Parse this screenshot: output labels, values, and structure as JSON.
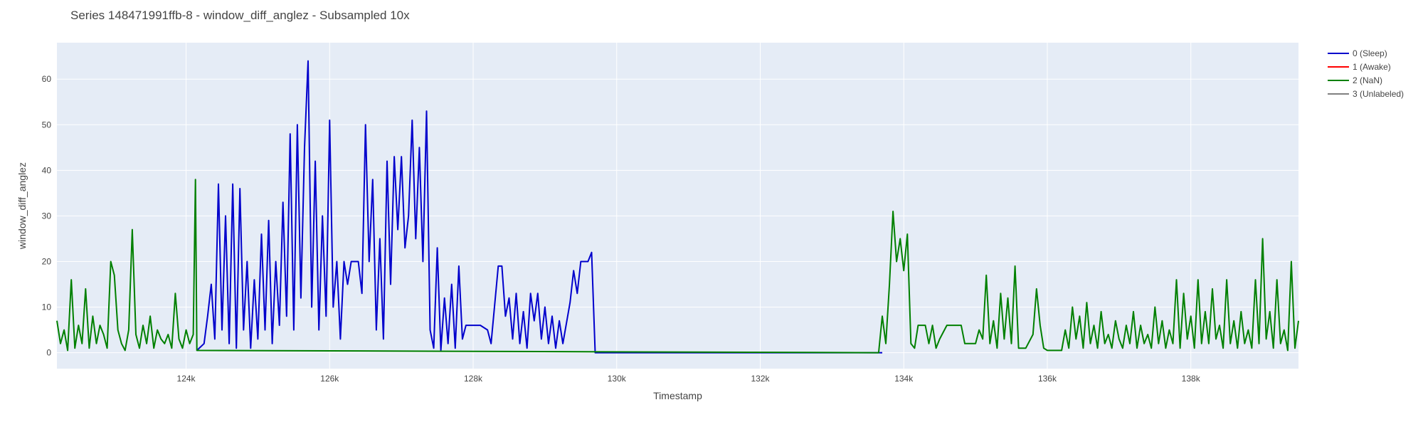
{
  "chart_data": {
    "type": "line",
    "title": "Series 148471991ffb-8 - window_diff_anglez - Subsampled 10x",
    "xlabel": "Timestamp",
    "ylabel": "window_diff_anglez",
    "xlim": [
      122200,
      139500
    ],
    "ylim": [
      -3.5,
      68
    ],
    "x_tick_values": [
      124000,
      126000,
      128000,
      130000,
      132000,
      134000,
      136000,
      138000
    ],
    "x_tick_labels": [
      "124k",
      "126k",
      "128k",
      "130k",
      "132k",
      "134k",
      "136k",
      "138k"
    ],
    "y_tick_values": [
      0,
      10,
      20,
      30,
      40,
      50,
      60
    ],
    "y_tick_labels": [
      "0",
      "10",
      "20",
      "30",
      "40",
      "50",
      "60"
    ],
    "grid": true,
    "legend_position": "top-right",
    "series": [
      {
        "name": "0 (Sleep)",
        "color": "#0000cc",
        "points": [
          [
            124150,
            0.5
          ],
          [
            124250,
            2
          ],
          [
            124300,
            8
          ],
          [
            124350,
            15
          ],
          [
            124400,
            3
          ],
          [
            124450,
            37
          ],
          [
            124500,
            5
          ],
          [
            124550,
            30
          ],
          [
            124600,
            2
          ],
          [
            124650,
            37
          ],
          [
            124700,
            1
          ],
          [
            124750,
            36
          ],
          [
            124800,
            5
          ],
          [
            124850,
            20
          ],
          [
            124900,
            1
          ],
          [
            124950,
            16
          ],
          [
            125000,
            3
          ],
          [
            125050,
            26
          ],
          [
            125100,
            5
          ],
          [
            125150,
            29
          ],
          [
            125200,
            2
          ],
          [
            125250,
            20
          ],
          [
            125300,
            6
          ],
          [
            125350,
            33
          ],
          [
            125400,
            8
          ],
          [
            125450,
            48
          ],
          [
            125500,
            5
          ],
          [
            125550,
            50
          ],
          [
            125600,
            12
          ],
          [
            125650,
            45
          ],
          [
            125700,
            64
          ],
          [
            125750,
            10
          ],
          [
            125800,
            42
          ],
          [
            125850,
            5
          ],
          [
            125900,
            30
          ],
          [
            125950,
            8
          ],
          [
            126000,
            51
          ],
          [
            126050,
            10
          ],
          [
            126100,
            20
          ],
          [
            126150,
            3
          ],
          [
            126200,
            20
          ],
          [
            126250,
            15
          ],
          [
            126300,
            20
          ],
          [
            126350,
            20
          ],
          [
            126400,
            20
          ],
          [
            126450,
            13
          ],
          [
            126500,
            50
          ],
          [
            126550,
            20
          ],
          [
            126600,
            38
          ],
          [
            126650,
            5
          ],
          [
            126700,
            25
          ],
          [
            126750,
            3
          ],
          [
            126800,
            42
          ],
          [
            126850,
            15
          ],
          [
            126900,
            43
          ],
          [
            126950,
            27
          ],
          [
            127000,
            43
          ],
          [
            127050,
            23
          ],
          [
            127100,
            30
          ],
          [
            127150,
            51
          ],
          [
            127200,
            25
          ],
          [
            127250,
            45
          ],
          [
            127300,
            20
          ],
          [
            127350,
            53
          ],
          [
            127400,
            5
          ],
          [
            127450,
            1
          ],
          [
            127500,
            23
          ],
          [
            127550,
            0.5
          ],
          [
            127600,
            12
          ],
          [
            127650,
            2
          ],
          [
            127700,
            15
          ],
          [
            127750,
            1
          ],
          [
            127800,
            19
          ],
          [
            127850,
            3
          ],
          [
            127900,
            6
          ],
          [
            128000,
            6
          ],
          [
            128100,
            6
          ],
          [
            128200,
            5
          ],
          [
            128250,
            2
          ],
          [
            128350,
            19
          ],
          [
            128400,
            19
          ],
          [
            128450,
            8
          ],
          [
            128500,
            12
          ],
          [
            128550,
            3
          ],
          [
            128600,
            13
          ],
          [
            128650,
            2
          ],
          [
            128700,
            9
          ],
          [
            128750,
            1
          ],
          [
            128800,
            13
          ],
          [
            128850,
            7
          ],
          [
            128900,
            13
          ],
          [
            128950,
            3
          ],
          [
            129000,
            10
          ],
          [
            129050,
            2
          ],
          [
            129100,
            8
          ],
          [
            129150,
            1
          ],
          [
            129200,
            7
          ],
          [
            129250,
            2
          ],
          [
            129350,
            11
          ],
          [
            129400,
            18
          ],
          [
            129450,
            13
          ],
          [
            129500,
            20
          ],
          [
            129600,
            20
          ],
          [
            129650,
            22
          ],
          [
            129700,
            0
          ],
          [
            130500,
            0
          ],
          [
            131500,
            0
          ],
          [
            132500,
            0
          ],
          [
            133500,
            0
          ],
          [
            133700,
            0
          ]
        ]
      },
      {
        "name": "1 (Awake)",
        "color": "#ff0000",
        "points": []
      },
      {
        "name": "2 (NaN)",
        "color": "#008000",
        "points": [
          [
            122200,
            7
          ],
          [
            122250,
            2
          ],
          [
            122300,
            5
          ],
          [
            122350,
            0.5
          ],
          [
            122400,
            16
          ],
          [
            122450,
            1
          ],
          [
            122500,
            6
          ],
          [
            122550,
            2
          ],
          [
            122600,
            14
          ],
          [
            122650,
            1
          ],
          [
            122700,
            8
          ],
          [
            122750,
            2
          ],
          [
            122800,
            6
          ],
          [
            122850,
            4
          ],
          [
            122900,
            1
          ],
          [
            122950,
            20
          ],
          [
            123000,
            17
          ],
          [
            123050,
            5
          ],
          [
            123100,
            2
          ],
          [
            123150,
            0.5
          ],
          [
            123200,
            5
          ],
          [
            123250,
            27
          ],
          [
            123300,
            4
          ],
          [
            123350,
            1
          ],
          [
            123400,
            6
          ],
          [
            123450,
            2
          ],
          [
            123500,
            8
          ],
          [
            123550,
            1
          ],
          [
            123600,
            5
          ],
          [
            123650,
            3
          ],
          [
            123700,
            2
          ],
          [
            123750,
            4
          ],
          [
            123800,
            1
          ],
          [
            123850,
            13
          ],
          [
            123900,
            3
          ],
          [
            123950,
            1
          ],
          [
            124000,
            5
          ],
          [
            124050,
            2
          ],
          [
            124100,
            4
          ],
          [
            124130,
            38
          ],
          [
            124150,
            0.5
          ],
          [
            133650,
            0
          ],
          [
            133700,
            8
          ],
          [
            133750,
            2
          ],
          [
            133800,
            15
          ],
          [
            133850,
            31
          ],
          [
            133900,
            20
          ],
          [
            133950,
            25
          ],
          [
            134000,
            18
          ],
          [
            134050,
            26
          ],
          [
            134100,
            2
          ],
          [
            134150,
            1
          ],
          [
            134200,
            6
          ],
          [
            134250,
            6
          ],
          [
            134300,
            6
          ],
          [
            134350,
            2
          ],
          [
            134400,
            6
          ],
          [
            134450,
            1
          ],
          [
            134500,
            3
          ],
          [
            134600,
            6
          ],
          [
            134800,
            6
          ],
          [
            134850,
            2
          ],
          [
            135000,
            2
          ],
          [
            135050,
            5
          ],
          [
            135100,
            3
          ],
          [
            135150,
            17
          ],
          [
            135200,
            2
          ],
          [
            135250,
            7
          ],
          [
            135300,
            1
          ],
          [
            135350,
            13
          ],
          [
            135400,
            3
          ],
          [
            135450,
            12
          ],
          [
            135500,
            2
          ],
          [
            135550,
            19
          ],
          [
            135600,
            1
          ],
          [
            135700,
            1
          ],
          [
            135800,
            4
          ],
          [
            135850,
            14
          ],
          [
            135900,
            6
          ],
          [
            135950,
            1
          ],
          [
            136000,
            0.5
          ],
          [
            136200,
            0.5
          ],
          [
            136250,
            5
          ],
          [
            136300,
            1
          ],
          [
            136350,
            10
          ],
          [
            136400,
            3
          ],
          [
            136450,
            8
          ],
          [
            136500,
            1
          ],
          [
            136550,
            11
          ],
          [
            136600,
            2
          ],
          [
            136650,
            6
          ],
          [
            136700,
            1
          ],
          [
            136750,
            9
          ],
          [
            136800,
            2
          ],
          [
            136850,
            4
          ],
          [
            136900,
            1
          ],
          [
            136950,
            7
          ],
          [
            137000,
            3
          ],
          [
            137050,
            1
          ],
          [
            137100,
            6
          ],
          [
            137150,
            2
          ],
          [
            137200,
            9
          ],
          [
            137250,
            1
          ],
          [
            137300,
            6
          ],
          [
            137350,
            2
          ],
          [
            137400,
            4
          ],
          [
            137450,
            1
          ],
          [
            137500,
            10
          ],
          [
            137550,
            2
          ],
          [
            137600,
            7
          ],
          [
            137650,
            1
          ],
          [
            137700,
            5
          ],
          [
            137750,
            2
          ],
          [
            137800,
            16
          ],
          [
            137850,
            1
          ],
          [
            137900,
            13
          ],
          [
            137950,
            3
          ],
          [
            138000,
            8
          ],
          [
            138050,
            1
          ],
          [
            138100,
            16
          ],
          [
            138150,
            2
          ],
          [
            138200,
            9
          ],
          [
            138250,
            2
          ],
          [
            138300,
            14
          ],
          [
            138350,
            3
          ],
          [
            138400,
            6
          ],
          [
            138450,
            1
          ],
          [
            138500,
            16
          ],
          [
            138550,
            2
          ],
          [
            138600,
            7
          ],
          [
            138650,
            1
          ],
          [
            138700,
            9
          ],
          [
            138750,
            2
          ],
          [
            138800,
            5
          ],
          [
            138850,
            1
          ],
          [
            138900,
            16
          ],
          [
            138950,
            2
          ],
          [
            139000,
            25
          ],
          [
            139050,
            3
          ],
          [
            139100,
            9
          ],
          [
            139150,
            1
          ],
          [
            139200,
            16
          ],
          [
            139250,
            2
          ],
          [
            139300,
            5
          ],
          [
            139350,
            0.5
          ],
          [
            139400,
            20
          ],
          [
            139450,
            1
          ],
          [
            139500,
            7
          ]
        ]
      },
      {
        "name": "3 (Unlabeled)",
        "color": "#808080",
        "points": []
      }
    ]
  }
}
